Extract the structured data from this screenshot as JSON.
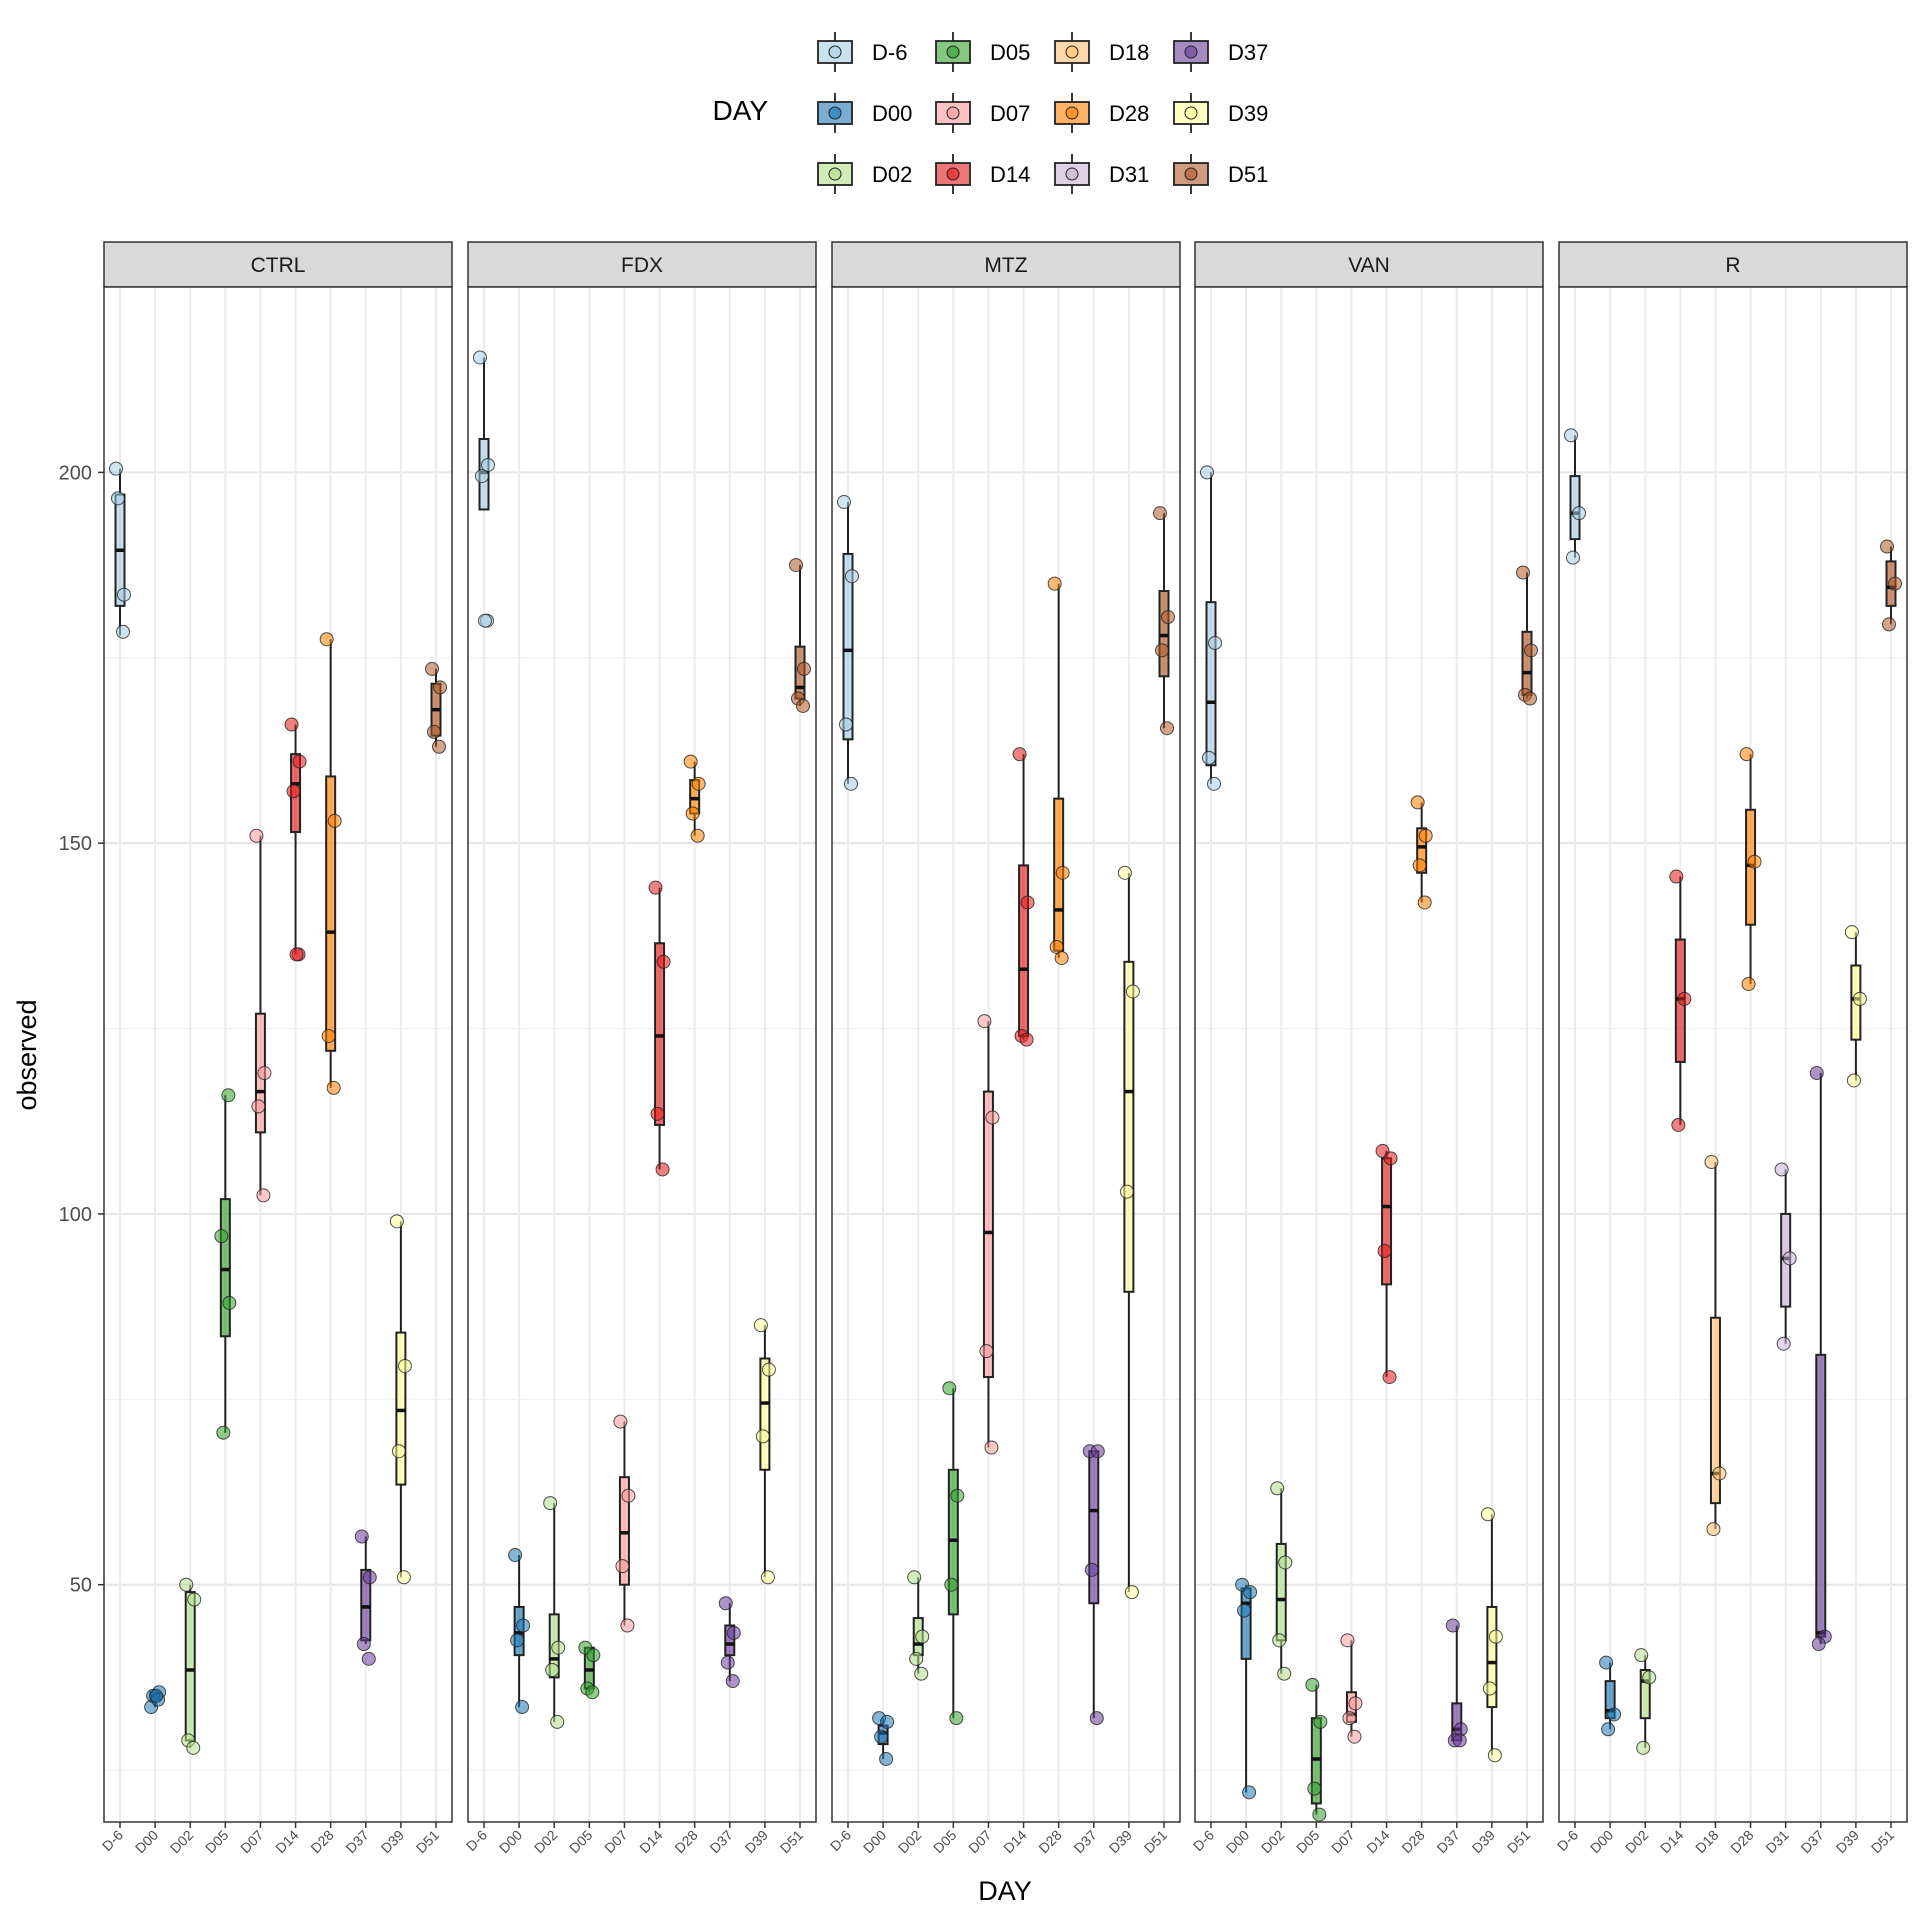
{
  "chart_data": {
    "type": "boxplot",
    "xlabel": "DAY",
    "ylabel": "observed",
    "ylim": [
      18,
      225
    ],
    "y_ticks": [
      50,
      100,
      150,
      200
    ],
    "grid": true,
    "legend_position": "top",
    "legend": {
      "title": "DAY",
      "entries": [
        "D-6",
        "D05",
        "D18",
        "D37",
        "D00",
        "D07",
        "D28",
        "D39",
        "D02",
        "D14",
        "D31",
        "D51"
      ]
    },
    "colors": {
      "D-6": "#a6cee3",
      "D00": "#1f78b4",
      "D02": "#b2df8a",
      "D05": "#33a02c",
      "D07": "#fb9a99",
      "D14": "#e31a1c",
      "D18": "#fdbf6f",
      "D28": "#ff7f00",
      "D31": "#cab2d6",
      "D37": "#6a3d9a",
      "D39": "#ffff99",
      "D51": "#b15928"
    },
    "panels": [
      {
        "name": "CTRL",
        "categories": [
          "D-6",
          "D00",
          "D02",
          "D05",
          "D07",
          "D14",
          "D28",
          "D37",
          "D39",
          "D51"
        ],
        "groups": [
          {
            "day": "D-6",
            "stats": [
              178,
              182,
              189.5,
              197,
              200.5
            ],
            "points": [
              200.5,
              183.5,
              196.5,
              178.5
            ]
          },
          {
            "day": "D00",
            "stats": [
              33.5,
              34.5,
              35,
              35.5,
              35.5
            ],
            "points": [
              33.5,
              35.5,
              35,
              34.5,
              35
            ]
          },
          {
            "day": "D02",
            "stats": [
              28,
              29,
              38.5,
              49,
              50
            ],
            "points": [
              50,
              48,
              29,
              28
            ]
          },
          {
            "day": "D05",
            "stats": [
              70.5,
              83.5,
              92.5,
              102,
              116
            ],
            "points": [
              97,
              88,
              70.5,
              116
            ]
          },
          {
            "day": "D07",
            "stats": [
              102.5,
              111,
              116.5,
              127,
              151
            ],
            "points": [
              151,
              119,
              114.5,
              102.5
            ]
          },
          {
            "day": "D14",
            "stats": [
              135,
              151.5,
              158,
              162,
              166
            ],
            "points": [
              166,
              161,
              157,
              135,
              135
            ]
          },
          {
            "day": "D28",
            "stats": [
              117,
              122,
              138,
              159,
              177.5
            ],
            "points": [
              177.5,
              153,
              124,
              117
            ]
          },
          {
            "day": "D37",
            "stats": [
              42,
              42.5,
              47,
              52,
              56.5
            ],
            "points": [
              56.5,
              51,
              42,
              40
            ]
          },
          {
            "day": "D39",
            "stats": [
              51,
              63.5,
              73.5,
              84,
              99
            ],
            "points": [
              99,
              79.5,
              68,
              51
            ]
          },
          {
            "day": "D51",
            "stats": [
              163,
              164.5,
              168,
              171.5,
              173.5
            ],
            "points": [
              173.5,
              171,
              165,
              163
            ]
          }
        ]
      },
      {
        "name": "FDX",
        "categories": [
          "D-6",
          "D00",
          "D02",
          "D05",
          "D07",
          "D14",
          "D28",
          "D37",
          "D39",
          "D51"
        ],
        "groups": [
          {
            "day": "D-6",
            "stats": [
              195,
              195,
              200,
              204.5,
              215.5
            ],
            "points": [
              215.5,
              201,
              199.5,
              180,
              180
            ]
          },
          {
            "day": "D00",
            "stats": [
              33.5,
              40.5,
              43.5,
              47,
              54
            ],
            "points": [
              54,
              44.5,
              42.5,
              33.5
            ]
          },
          {
            "day": "D02",
            "stats": [
              31.5,
              37.5,
              40,
              46,
              61
            ],
            "points": [
              61,
              41.5,
              38.5,
              31.5
            ]
          },
          {
            "day": "D05",
            "stats": [
              35.5,
              36,
              38.5,
              41.5,
              41.5
            ],
            "points": [
              41.5,
              40.5,
              36,
              35.5
            ]
          },
          {
            "day": "D07",
            "stats": [
              44.5,
              50,
              57,
              64.5,
              72
            ],
            "points": [
              72,
              62,
              52.5,
              44.5
            ]
          },
          {
            "day": "D14",
            "stats": [
              106,
              112,
              124,
              136.5,
              144
            ],
            "points": [
              144,
              134,
              113.5,
              106
            ]
          },
          {
            "day": "D28",
            "stats": [
              151,
              154,
              156,
              158.5,
              161
            ],
            "points": [
              161,
              158,
              154,
              151
            ]
          },
          {
            "day": "D37",
            "stats": [
              37,
              40.5,
              42,
              44.5,
              47.5
            ],
            "points": [
              47.5,
              43.5,
              39.5,
              37
            ]
          },
          {
            "day": "D39",
            "stats": [
              51,
              65.5,
              74.5,
              80.5,
              85
            ],
            "points": [
              85,
              79,
              70,
              51
            ]
          },
          {
            "day": "D51",
            "stats": [
              168.5,
              169.5,
              171,
              176.5,
              187.5
            ],
            "points": [
              187.5,
              173.5,
              169.5,
              168.5
            ]
          }
        ]
      },
      {
        "name": "MTZ",
        "categories": [
          "D-6",
          "D00",
          "D02",
          "D05",
          "D07",
          "D14",
          "D28",
          "D37",
          "D39",
          "D51"
        ],
        "groups": [
          {
            "day": "D-6",
            "stats": [
              158,
              164,
              176,
              189,
              196
            ],
            "points": [
              196,
              186,
              166,
              158
            ]
          },
          {
            "day": "D00",
            "stats": [
              26.5,
              28.5,
              30,
              31,
              32
            ],
            "points": [
              32,
              31.5,
              29.5,
              26.5
            ]
          },
          {
            "day": "D02",
            "stats": [
              38,
              40.5,
              42,
              45.5,
              51
            ],
            "points": [
              51,
              43,
              40,
              38
            ]
          },
          {
            "day": "D05",
            "stats": [
              32,
              46,
              56,
              65.5,
              76.5
            ],
            "points": [
              76.5,
              62,
              50,
              32
            ]
          },
          {
            "day": "D07",
            "stats": [
              68.5,
              78,
              97.5,
              116.5,
              126
            ],
            "points": [
              126,
              113,
              81.5,
              68.5
            ]
          },
          {
            "day": "D14",
            "stats": [
              123.5,
              124,
              133,
              147,
              162
            ],
            "points": [
              162,
              142,
              124,
              123.5
            ]
          },
          {
            "day": "D28",
            "stats": [
              134.5,
              135.5,
              141,
              156,
              185
            ],
            "points": [
              185,
              146,
              136,
              134.5
            ]
          },
          {
            "day": "D37",
            "stats": [
              32,
              47.5,
              60,
              68,
              68
            ],
            "points": [
              68,
              68,
              52,
              32
            ]
          },
          {
            "day": "D39",
            "stats": [
              49,
              89.5,
              116.5,
              134,
              146
            ],
            "points": [
              146,
              130,
              103,
              49
            ]
          },
          {
            "day": "D51",
            "stats": [
              165.5,
              172.5,
              178,
              184,
              194.5
            ],
            "points": [
              194.5,
              180.5,
              176,
              165.5
            ]
          }
        ]
      },
      {
        "name": "VAN",
        "categories": [
          "D-6",
          "D00",
          "D02",
          "D05",
          "D07",
          "D14",
          "D28",
          "D37",
          "D39",
          "D51"
        ],
        "groups": [
          {
            "day": "D-6",
            "stats": [
              158,
              160.5,
              169,
              182.5,
              200
            ],
            "points": [
              200,
              177,
              161.5,
              158
            ]
          },
          {
            "day": "D00",
            "stats": [
              22,
              40,
              47.5,
              49.5,
              50
            ],
            "points": [
              50,
              49,
              46.5,
              22
            ]
          },
          {
            "day": "D02",
            "stats": [
              38,
              42.5,
              48,
              55.5,
              63
            ],
            "points": [
              63,
              53,
              42.5,
              38
            ]
          },
          {
            "day": "D05",
            "stats": [
              19,
              20.5,
              26.5,
              32,
              36.5
            ],
            "points": [
              36.5,
              31.5,
              22.5,
              19
            ]
          },
          {
            "day": "D07",
            "stats": [
              29.5,
              31.5,
              32.5,
              35.5,
              42.5
            ],
            "points": [
              42.5,
              34,
              32,
              29.5
            ]
          },
          {
            "day": "D14",
            "stats": [
              78,
              90.5,
              101,
              107.5,
              108.5
            ],
            "points": [
              108.5,
              107.5,
              95,
              78
            ]
          },
          {
            "day": "D28",
            "stats": [
              142,
              146,
              149.5,
              152,
              155.5
            ],
            "points": [
              155.5,
              151,
              147,
              142
            ]
          },
          {
            "day": "D37",
            "stats": [
              29,
              29,
              30.5,
              34,
              44.5
            ],
            "points": [
              44.5,
              30.5,
              29,
              29
            ]
          },
          {
            "day": "D39",
            "stats": [
              27,
              33.5,
              39.5,
              47,
              59.5
            ],
            "points": [
              59.5,
              43,
              36,
              27
            ]
          },
          {
            "day": "D51",
            "stats": [
              169.5,
              170,
              173,
              178.5,
              186.5
            ],
            "points": [
              186.5,
              176,
              170,
              169.5
            ]
          }
        ]
      },
      {
        "name": "R",
        "categories": [
          "D-6",
          "D00",
          "D02",
          "D14",
          "D18",
          "D28",
          "D31",
          "D37",
          "D39",
          "D51"
        ],
        "groups": [
          {
            "day": "D-6",
            "stats": [
              188.5,
              191,
              194.5,
              199.5,
              205
            ],
            "points": [
              205,
              194.5,
              188.5
            ]
          },
          {
            "day": "D00",
            "stats": [
              30.5,
              32,
              33,
              37,
              39.5
            ],
            "points": [
              39.5,
              32.5,
              30.5
            ]
          },
          {
            "day": "D02",
            "stats": [
              28,
              32,
              37,
              38.5,
              40.5
            ],
            "points": [
              40.5,
              37.5,
              28
            ]
          },
          {
            "day": "D14",
            "stats": [
              112,
              120.5,
              129,
              137,
              145.5
            ],
            "points": [
              145.5,
              129,
              112
            ]
          },
          {
            "day": "D18",
            "stats": [
              57.5,
              61,
              65,
              86,
              107
            ],
            "points": [
              107,
              65,
              57.5
            ]
          },
          {
            "day": "D28",
            "stats": [
              131,
              139,
              147,
              154.5,
              162
            ],
            "points": [
              162,
              147.5,
              131
            ]
          },
          {
            "day": "D31",
            "stats": [
              82.5,
              87.5,
              94,
              100,
              106
            ],
            "points": [
              106,
              94,
              82.5
            ]
          },
          {
            "day": "D37",
            "stats": [
              42,
              43,
              43.5,
              81,
              119
            ],
            "points": [
              119,
              43,
              42
            ]
          },
          {
            "day": "D39",
            "stats": [
              118,
              123.5,
              129,
              133.5,
              138
            ],
            "points": [
              138,
              129,
              118
            ]
          },
          {
            "day": "D51",
            "stats": [
              179.5,
              182,
              184.5,
              188,
              190
            ],
            "points": [
              190,
              185,
              179.5
            ]
          }
        ]
      }
    ]
  }
}
